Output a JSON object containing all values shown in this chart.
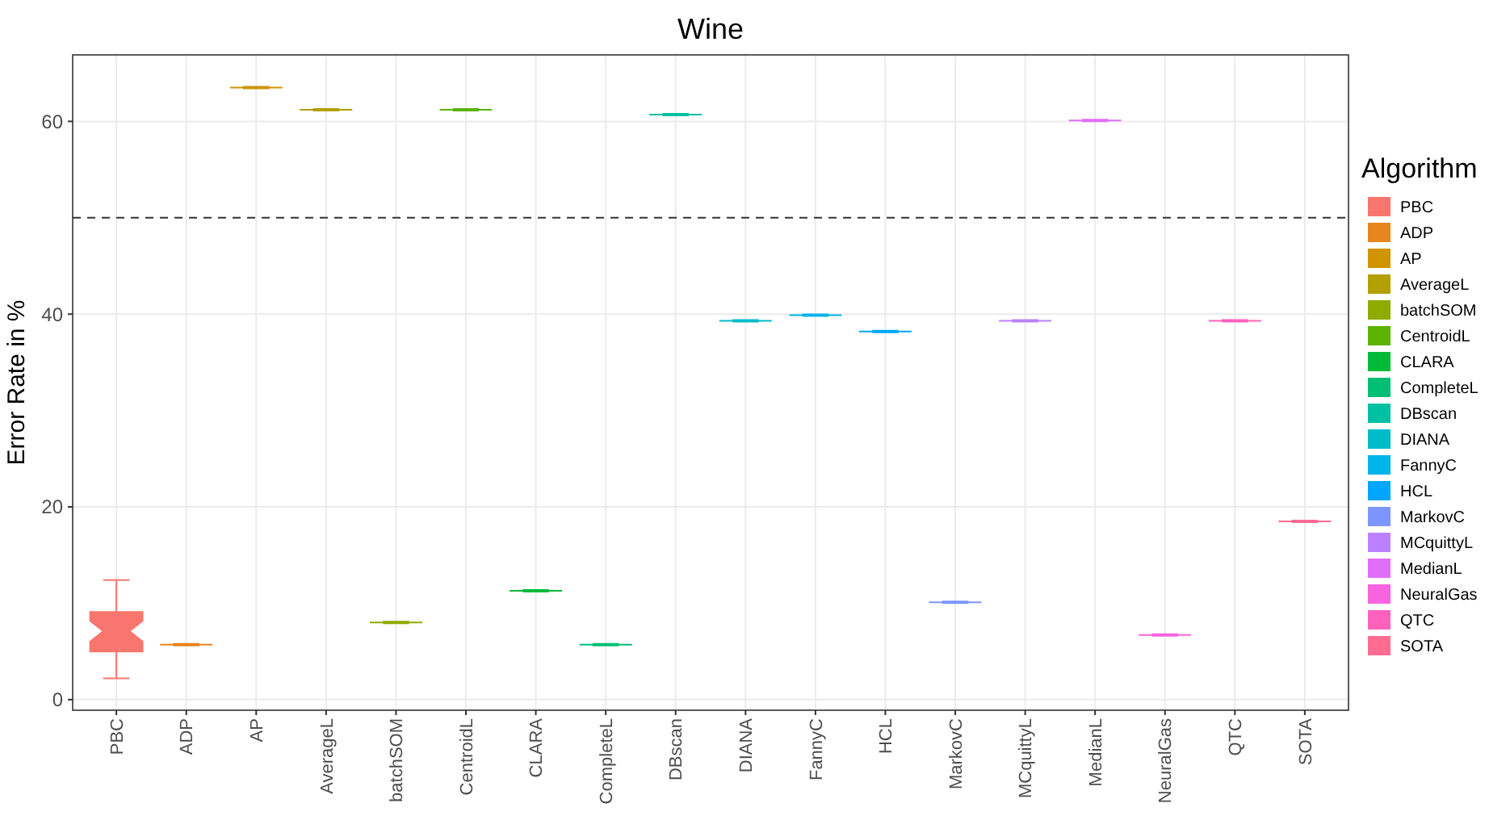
{
  "chart_data": {
    "type": "box",
    "title": "Wine",
    "ylabel": "Error Rate in %",
    "legend_title": "Algorithm",
    "legend": "right",
    "grid": true,
    "categories": [
      "PBC",
      "ADP",
      "AP",
      "AverageL",
      "batchSOM",
      "CentroidL",
      "CLARA",
      "CompleteL",
      "DBscan",
      "DIANA",
      "FannyC",
      "HCL",
      "MarkovC",
      "MCquittyL",
      "MedianL",
      "NeuralGas",
      "QTC",
      "SOTA"
    ],
    "series": [
      {
        "name": "PBC",
        "color": "#f8766d",
        "boxes": [
          {
            "low": 2.2,
            "q1": 5.0,
            "median": 7.1,
            "q3": 9.1,
            "high": 12.4
          },
          null,
          null,
          null,
          null,
          null,
          null,
          null,
          null,
          null,
          null,
          null,
          null,
          null,
          null,
          null,
          null,
          null
        ]
      },
      {
        "name": "ADP",
        "color": "#e7851e",
        "boxes": [
          null,
          {
            "low": 5.7,
            "q1": 5.7,
            "median": 5.7,
            "q3": 5.7,
            "high": 5.7
          },
          null,
          null,
          null,
          null,
          null,
          null,
          null,
          null,
          null,
          null,
          null,
          null,
          null,
          null,
          null,
          null
        ]
      },
      {
        "name": "AP",
        "color": "#d09400",
        "boxes": [
          null,
          null,
          {
            "low": 63.5,
            "q1": 63.5,
            "median": 63.5,
            "q3": 63.5,
            "high": 63.5
          },
          null,
          null,
          null,
          null,
          null,
          null,
          null,
          null,
          null,
          null,
          null,
          null,
          null,
          null,
          null
        ]
      },
      {
        "name": "AverageL",
        "color": "#b2a100",
        "boxes": [
          null,
          null,
          null,
          {
            "low": 61.2,
            "q1": 61.2,
            "median": 61.2,
            "q3": 61.2,
            "high": 61.2
          },
          null,
          null,
          null,
          null,
          null,
          null,
          null,
          null,
          null,
          null,
          null,
          null,
          null,
          null
        ]
      },
      {
        "name": "batchSOM",
        "color": "#8eab00",
        "boxes": [
          null,
          null,
          null,
          null,
          {
            "low": 8.0,
            "q1": 8.0,
            "median": 8.0,
            "q3": 8.0,
            "high": 8.0
          },
          null,
          null,
          null,
          null,
          null,
          null,
          null,
          null,
          null,
          null,
          null,
          null,
          null
        ]
      },
      {
        "name": "CentroidL",
        "color": "#5bb300",
        "boxes": [
          null,
          null,
          null,
          null,
          null,
          {
            "low": 61.2,
            "q1": 61.2,
            "median": 61.2,
            "q3": 61.2,
            "high": 61.2
          },
          null,
          null,
          null,
          null,
          null,
          null,
          null,
          null,
          null,
          null,
          null,
          null
        ]
      },
      {
        "name": "CLARA",
        "color": "#00ba38",
        "boxes": [
          null,
          null,
          null,
          null,
          null,
          null,
          {
            "low": 11.3,
            "q1": 11.3,
            "median": 11.3,
            "q3": 11.3,
            "high": 11.3
          },
          null,
          null,
          null,
          null,
          null,
          null,
          null,
          null,
          null,
          null,
          null
        ]
      },
      {
        "name": "CompleteL",
        "color": "#00bf74",
        "boxes": [
          null,
          null,
          null,
          null,
          null,
          null,
          null,
          {
            "low": 5.7,
            "q1": 5.7,
            "median": 5.7,
            "q3": 5.7,
            "high": 5.7
          },
          null,
          null,
          null,
          null,
          null,
          null,
          null,
          null,
          null,
          null
        ]
      },
      {
        "name": "DBscan",
        "color": "#00c0a3",
        "boxes": [
          null,
          null,
          null,
          null,
          null,
          null,
          null,
          null,
          {
            "low": 60.7,
            "q1": 60.7,
            "median": 60.7,
            "q3": 60.7,
            "high": 60.7
          },
          null,
          null,
          null,
          null,
          null,
          null,
          null,
          null,
          null
        ]
      },
      {
        "name": "DIANA",
        "color": "#00bcc9",
        "boxes": [
          null,
          null,
          null,
          null,
          null,
          null,
          null,
          null,
          null,
          {
            "low": 39.3,
            "q1": 39.3,
            "median": 39.3,
            "q3": 39.3,
            "high": 39.3
          },
          null,
          null,
          null,
          null,
          null,
          null,
          null,
          null
        ]
      },
      {
        "name": "FannyC",
        "color": "#00b3e9",
        "boxes": [
          null,
          null,
          null,
          null,
          null,
          null,
          null,
          null,
          null,
          null,
          {
            "low": 39.9,
            "q1": 39.9,
            "median": 39.9,
            "q3": 39.9,
            "high": 39.9
          },
          null,
          null,
          null,
          null,
          null,
          null,
          null
        ]
      },
      {
        "name": "HCL",
        "color": "#00a6ff",
        "boxes": [
          null,
          null,
          null,
          null,
          null,
          null,
          null,
          null,
          null,
          null,
          null,
          {
            "low": 38.2,
            "q1": 38.2,
            "median": 38.2,
            "q3": 38.2,
            "high": 38.2
          },
          null,
          null,
          null,
          null,
          null,
          null
        ]
      },
      {
        "name": "MarkovC",
        "color": "#7d96ff",
        "boxes": [
          null,
          null,
          null,
          null,
          null,
          null,
          null,
          null,
          null,
          null,
          null,
          null,
          {
            "low": 10.1,
            "q1": 10.1,
            "median": 10.1,
            "q3": 10.1,
            "high": 10.1
          },
          null,
          null,
          null,
          null,
          null
        ]
      },
      {
        "name": "MCquittyL",
        "color": "#bc81ff",
        "boxes": [
          null,
          null,
          null,
          null,
          null,
          null,
          null,
          null,
          null,
          null,
          null,
          null,
          null,
          {
            "low": 39.3,
            "q1": 39.3,
            "median": 39.3,
            "q3": 39.3,
            "high": 39.3
          },
          null,
          null,
          null,
          null
        ]
      },
      {
        "name": "MedianL",
        "color": "#e26ef7",
        "boxes": [
          null,
          null,
          null,
          null,
          null,
          null,
          null,
          null,
          null,
          null,
          null,
          null,
          null,
          null,
          {
            "low": 60.1,
            "q1": 60.1,
            "median": 60.1,
            "q3": 60.1,
            "high": 60.1
          },
          null,
          null,
          null
        ]
      },
      {
        "name": "NeuralGas",
        "color": "#f863df",
        "boxes": [
          null,
          null,
          null,
          null,
          null,
          null,
          null,
          null,
          null,
          null,
          null,
          null,
          null,
          null,
          null,
          {
            "low": 6.7,
            "q1": 6.7,
            "median": 6.7,
            "q3": 6.7,
            "high": 6.7
          },
          null,
          null
        ]
      },
      {
        "name": "QTC",
        "color": "#ff62bc",
        "boxes": [
          null,
          null,
          null,
          null,
          null,
          null,
          null,
          null,
          null,
          null,
          null,
          null,
          null,
          null,
          null,
          null,
          {
            "low": 39.3,
            "q1": 39.3,
            "median": 39.3,
            "q3": 39.3,
            "high": 39.3
          },
          null
        ]
      },
      {
        "name": "SOTA",
        "color": "#ff6c92",
        "boxes": [
          null,
          null,
          null,
          null,
          null,
          null,
          null,
          null,
          null,
          null,
          null,
          null,
          null,
          null,
          null,
          null,
          null,
          {
            "low": 18.5,
            "q1": 18.5,
            "median": 18.5,
            "q3": 18.5,
            "high": 18.5
          }
        ]
      }
    ],
    "ylim": [
      -1.1,
      66.9
    ],
    "yticks": [
      0,
      20,
      40,
      60
    ],
    "ref_lines": [
      {
        "axis": "y",
        "value": 50,
        "color": "#333333",
        "line_style": "dashed"
      }
    ]
  }
}
